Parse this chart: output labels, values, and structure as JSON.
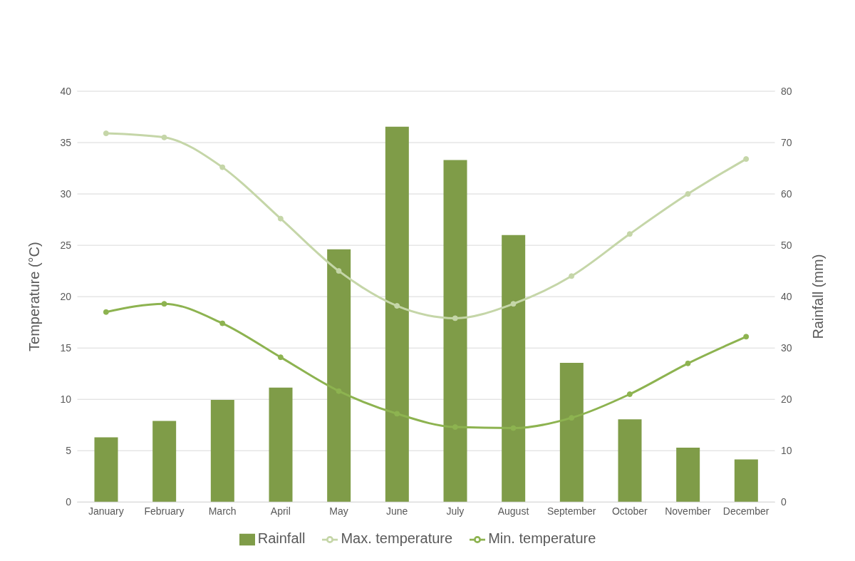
{
  "chart_data": {
    "type": "bar",
    "ylabel": "Temperature (°C)",
    "y2label": "Rainfall (mm)",
    "categories": [
      "January",
      "February",
      "March",
      "April",
      "May",
      "June",
      "July",
      "August",
      "September",
      "October",
      "November",
      "December"
    ],
    "series": [
      {
        "name": "Rainfall",
        "axis": "y2",
        "color": "#7f9c48",
        "values": [
          12.6,
          15.8,
          19.9,
          22.3,
          49.2,
          73.1,
          66.6,
          52.0,
          27.1,
          16.1,
          10.6,
          8.3
        ]
      },
      {
        "name": "Max. temperature",
        "type": "line",
        "axis": "y",
        "color": "#c5d6a8",
        "values": [
          35.9,
          35.5,
          32.6,
          27.6,
          22.5,
          19.1,
          17.9,
          19.3,
          22.0,
          26.1,
          30.0,
          33.4
        ]
      },
      {
        "name": "Min. temperature",
        "type": "line",
        "axis": "y",
        "color": "#8db350",
        "values": [
          18.5,
          19.3,
          17.4,
          14.1,
          10.8,
          8.6,
          7.3,
          7.2,
          8.2,
          10.5,
          13.5,
          16.1
        ]
      }
    ],
    "ylim": [
      0,
      40
    ],
    "yticks": [
      0,
      5,
      10,
      15,
      20,
      25,
      30,
      35,
      40
    ],
    "y2lim": [
      0,
      80
    ],
    "y2ticks": [
      0,
      10,
      20,
      30,
      40,
      50,
      60,
      70,
      80
    ],
    "grid": "y",
    "legend": "bottom",
    "marker": "circle",
    "line_style": "solid"
  }
}
